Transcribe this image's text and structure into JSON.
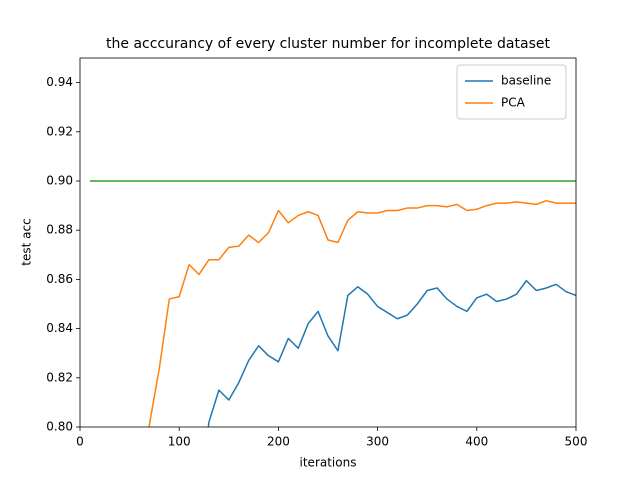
{
  "chart_data": {
    "type": "line",
    "title": "the acccurancy of every cluster number for incomplete dataset",
    "x_label": "iterations",
    "y_label": "test acc",
    "xlim": [
      0,
      500
    ],
    "ylim": [
      0.8,
      0.95
    ],
    "xticks": [
      0,
      100,
      200,
      300,
      400,
      500
    ],
    "yticks": [
      {
        "value": 0.8,
        "label": "0.80"
      },
      {
        "value": 0.82,
        "label": "0.82"
      },
      {
        "value": 0.84,
        "label": "0.84"
      },
      {
        "value": 0.86,
        "label": "0.86"
      },
      {
        "value": 0.88,
        "label": "0.88"
      },
      {
        "value": 0.9,
        "label": "0.90"
      },
      {
        "value": 0.92,
        "label": "0.92"
      },
      {
        "value": 0.94,
        "label": "0.94"
      }
    ],
    "legend": "upper right",
    "series": [
      {
        "name": "baseline",
        "color": "#1f77b4",
        "x": [
          120,
          130,
          140,
          150,
          160,
          170,
          180,
          190,
          200,
          210,
          220,
          230,
          240,
          250,
          260,
          270,
          280,
          290,
          300,
          310,
          320,
          330,
          340,
          350,
          360,
          370,
          380,
          390,
          400,
          410,
          420,
          430,
          440,
          450,
          460,
          470,
          480,
          490,
          500
        ],
        "values": [
          0.77,
          0.802,
          0.815,
          0.811,
          0.818,
          0.827,
          0.833,
          0.829,
          0.8265,
          0.836,
          0.832,
          0.842,
          0.847,
          0.837,
          0.831,
          0.8535,
          0.857,
          0.854,
          0.849,
          0.8465,
          0.844,
          0.8455,
          0.85,
          0.8555,
          0.8565,
          0.852,
          0.849,
          0.847,
          0.8525,
          0.854,
          0.851,
          0.852,
          0.854,
          0.8595,
          0.8555,
          0.8565,
          0.858,
          0.855,
          0.8535
        ]
      },
      {
        "name": "PCA",
        "color": "#ff7f0e",
        "x": [
          60,
          70,
          80,
          90,
          100,
          110,
          120,
          130,
          140,
          150,
          160,
          170,
          180,
          190,
          200,
          210,
          220,
          230,
          240,
          250,
          260,
          270,
          280,
          290,
          300,
          310,
          320,
          330,
          340,
          350,
          360,
          370,
          380,
          390,
          400,
          410,
          420,
          430,
          440,
          450,
          460,
          470,
          480,
          490,
          500
        ],
        "values": [
          0.77,
          0.801,
          0.824,
          0.852,
          0.853,
          0.866,
          0.862,
          0.868,
          0.868,
          0.873,
          0.8735,
          0.878,
          0.875,
          0.879,
          0.888,
          0.883,
          0.886,
          0.8875,
          0.886,
          0.876,
          0.875,
          0.884,
          0.8875,
          0.887,
          0.887,
          0.888,
          0.888,
          0.889,
          0.889,
          0.89,
          0.89,
          0.8895,
          0.8905,
          0.888,
          0.8885,
          0.89,
          0.891,
          0.891,
          0.8915,
          0.891,
          0.8905,
          0.892,
          0.891,
          0.891,
          0.891
        ]
      },
      {
        "color": "#2ca02c",
        "x": [
          10,
          500
        ],
        "values": [
          0.9,
          0.9
        ]
      }
    ]
  }
}
